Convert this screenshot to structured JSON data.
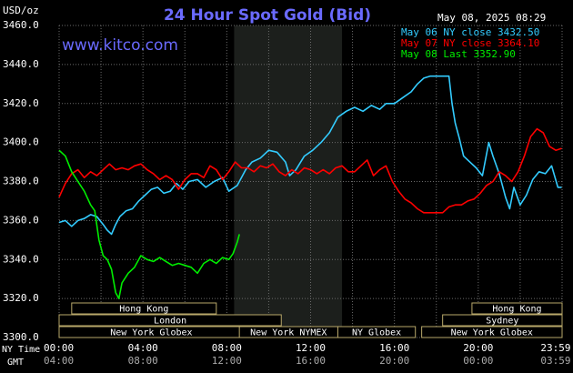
{
  "header": {
    "unit": "USD/oz",
    "title": "24 Hour Spot Gold (Bid)",
    "timestamp": "May 08, 2025 08:29",
    "site": "www.kitco.com"
  },
  "legend": [
    {
      "label": "May 06 NY close 3432.50",
      "color": "#33ccff"
    },
    {
      "label": "May 07 NY close 3364.10",
      "color": "#ff0000"
    },
    {
      "label": "May 08 Last 3352.90",
      "color": "#00ee00"
    }
  ],
  "sessions": [
    {
      "label": "Hong Kong",
      "row": 0,
      "start": 0.6,
      "end": 7.5
    },
    {
      "label": "Hong Kong",
      "row": 0,
      "start": 19.7,
      "end": 24.0
    },
    {
      "label": "London",
      "row": 1,
      "start": 0.0,
      "end": 10.6
    },
    {
      "label": "Sydney",
      "row": 1,
      "start": 18.3,
      "end": 24.0
    },
    {
      "label": "New York Globex",
      "row": 2,
      "start": 0.0,
      "end": 8.8
    },
    {
      "label": "New York NYMEX",
      "row": 2,
      "start": 8.6,
      "end": 13.3
    },
    {
      "label": "NY Globex",
      "row": 2,
      "start": 13.3,
      "end": 17.0
    },
    {
      "label": "New York Globex",
      "row": 2,
      "start": 17.3,
      "end": 24.0
    }
  ],
  "axis_labels": {
    "ny_time": "NY Time",
    "gmt": "GMT"
  },
  "colors": {
    "background": "#000000",
    "grid": "#6a6a6a",
    "title": "#6a6aff",
    "site": "#6a6aff",
    "nymex_shade": "#1c1f1c",
    "session_bar": "#000000",
    "session_border": "#b8a86a",
    "gmt_text": "#aaaaaa"
  },
  "chart_data": {
    "type": "line",
    "title": "24 Hour Spot Gold (Bid)",
    "ylabel": "USD/oz",
    "xlabel": "NY Time",
    "ylim": [
      3300,
      3460
    ],
    "yticks": [
      3300.0,
      3320.0,
      3340.0,
      3360.0,
      3380.0,
      3400.0,
      3420.0,
      3440.0,
      3460.0
    ],
    "xlim": [
      0,
      24
    ],
    "xticks": [
      {
        "hour": 0,
        "ny": "00:00",
        "gmt": "04:00"
      },
      {
        "hour": 4,
        "ny": "04:00",
        "gmt": "08:00"
      },
      {
        "hour": 8,
        "ny": "08:00",
        "gmt": "12:00"
      },
      {
        "hour": 12,
        "ny": "12:00",
        "gmt": "16:00"
      },
      {
        "hour": 16,
        "ny": "16:00",
        "gmt": "20:00"
      },
      {
        "hour": 20,
        "ny": "20:00",
        "gmt": "00:00"
      },
      {
        "hour": 23.98,
        "ny": "23:59",
        "gmt": "03:59"
      }
    ],
    "nymex_session": [
      8.35,
      13.5
    ],
    "grid": true,
    "legend_position": "top-right",
    "series": [
      {
        "name": "May 06 NY close 3432.50",
        "color": "#33ccff",
        "points": [
          [
            0.0,
            3359
          ],
          [
            0.3,
            3360
          ],
          [
            0.6,
            3357
          ],
          [
            0.9,
            3360
          ],
          [
            1.2,
            3361
          ],
          [
            1.5,
            3363
          ],
          [
            1.8,
            3362
          ],
          [
            2.1,
            3358
          ],
          [
            2.3,
            3355
          ],
          [
            2.5,
            3353
          ],
          [
            2.7,
            3358
          ],
          [
            2.9,
            3362
          ],
          [
            3.2,
            3365
          ],
          [
            3.5,
            3366
          ],
          [
            3.8,
            3370
          ],
          [
            4.1,
            3373
          ],
          [
            4.4,
            3376
          ],
          [
            4.7,
            3377
          ],
          [
            5.0,
            3374
          ],
          [
            5.3,
            3375
          ],
          [
            5.6,
            3379
          ],
          [
            5.9,
            3376
          ],
          [
            6.2,
            3380
          ],
          [
            6.6,
            3381
          ],
          [
            7.0,
            3377
          ],
          [
            7.4,
            3380
          ],
          [
            7.8,
            3382
          ],
          [
            8.1,
            3375
          ],
          [
            8.5,
            3378
          ],
          [
            8.9,
            3386
          ],
          [
            9.2,
            3390
          ],
          [
            9.6,
            3392
          ],
          [
            10.0,
            3396
          ],
          [
            10.4,
            3395
          ],
          [
            10.8,
            3390
          ],
          [
            11.0,
            3383
          ],
          [
            11.3,
            3386
          ],
          [
            11.7,
            3393
          ],
          [
            12.1,
            3396
          ],
          [
            12.5,
            3400
          ],
          [
            12.9,
            3405
          ],
          [
            13.3,
            3413
          ],
          [
            13.7,
            3416
          ],
          [
            14.1,
            3418
          ],
          [
            14.5,
            3416
          ],
          [
            14.9,
            3419
          ],
          [
            15.3,
            3417
          ],
          [
            15.6,
            3420
          ],
          [
            16.0,
            3420
          ],
          [
            16.4,
            3423
          ],
          [
            16.8,
            3426
          ],
          [
            17.1,
            3430
          ],
          [
            17.4,
            3433
          ],
          [
            17.7,
            3434
          ],
          [
            18.0,
            3434
          ],
          [
            18.3,
            3434
          ],
          [
            18.6,
            3434
          ],
          [
            18.75,
            3420
          ],
          [
            18.9,
            3410
          ],
          [
            19.1,
            3402
          ],
          [
            19.3,
            3393
          ],
          [
            19.6,
            3390
          ],
          [
            19.9,
            3387
          ],
          [
            20.2,
            3383
          ],
          [
            20.5,
            3400
          ],
          [
            20.7,
            3393
          ],
          [
            21.0,
            3384
          ],
          [
            21.3,
            3372
          ],
          [
            21.5,
            3366
          ],
          [
            21.7,
            3377
          ],
          [
            22.0,
            3368
          ],
          [
            22.3,
            3373
          ],
          [
            22.6,
            3381
          ],
          [
            22.9,
            3385
          ],
          [
            23.2,
            3384
          ],
          [
            23.5,
            3388
          ],
          [
            23.8,
            3377
          ],
          [
            23.98,
            3377
          ]
        ]
      },
      {
        "name": "May 07 NY close 3364.10",
        "color": "#ff0000",
        "points": [
          [
            0.0,
            3372
          ],
          [
            0.3,
            3379
          ],
          [
            0.6,
            3384
          ],
          [
            0.9,
            3386
          ],
          [
            1.2,
            3382
          ],
          [
            1.5,
            3385
          ],
          [
            1.8,
            3383
          ],
          [
            2.1,
            3386
          ],
          [
            2.4,
            3389
          ],
          [
            2.7,
            3386
          ],
          [
            3.0,
            3387
          ],
          [
            3.3,
            3386
          ],
          [
            3.6,
            3388
          ],
          [
            3.9,
            3389
          ],
          [
            4.2,
            3386
          ],
          [
            4.5,
            3384
          ],
          [
            4.8,
            3381
          ],
          [
            5.1,
            3383
          ],
          [
            5.4,
            3381
          ],
          [
            5.7,
            3376
          ],
          [
            6.0,
            3381
          ],
          [
            6.3,
            3384
          ],
          [
            6.6,
            3384
          ],
          [
            6.9,
            3382
          ],
          [
            7.2,
            3388
          ],
          [
            7.5,
            3386
          ],
          [
            7.8,
            3381
          ],
          [
            8.1,
            3385
          ],
          [
            8.4,
            3390
          ],
          [
            8.7,
            3387
          ],
          [
            9.0,
            3387
          ],
          [
            9.3,
            3385
          ],
          [
            9.6,
            3388
          ],
          [
            9.9,
            3387
          ],
          [
            10.2,
            3389
          ],
          [
            10.5,
            3385
          ],
          [
            10.8,
            3383
          ],
          [
            11.1,
            3386
          ],
          [
            11.4,
            3384
          ],
          [
            11.7,
            3387
          ],
          [
            12.0,
            3386
          ],
          [
            12.3,
            3384
          ],
          [
            12.6,
            3386
          ],
          [
            12.9,
            3384
          ],
          [
            13.2,
            3387
          ],
          [
            13.5,
            3388
          ],
          [
            13.8,
            3385
          ],
          [
            14.1,
            3385
          ],
          [
            14.4,
            3388
          ],
          [
            14.7,
            3391
          ],
          [
            15.0,
            3383
          ],
          [
            15.3,
            3386
          ],
          [
            15.6,
            3388
          ],
          [
            15.9,
            3380
          ],
          [
            16.2,
            3375
          ],
          [
            16.5,
            3371
          ],
          [
            16.8,
            3369
          ],
          [
            17.1,
            3366
          ],
          [
            17.4,
            3364
          ],
          [
            17.7,
            3364
          ],
          [
            18.0,
            3364
          ],
          [
            18.3,
            3364
          ],
          [
            18.6,
            3367
          ],
          [
            18.9,
            3368
          ],
          [
            19.2,
            3368
          ],
          [
            19.5,
            3370
          ],
          [
            19.8,
            3371
          ],
          [
            20.1,
            3374
          ],
          [
            20.4,
            3378
          ],
          [
            20.7,
            3380
          ],
          [
            21.0,
            3385
          ],
          [
            21.3,
            3383
          ],
          [
            21.6,
            3380
          ],
          [
            21.9,
            3385
          ],
          [
            22.2,
            3393
          ],
          [
            22.5,
            3403
          ],
          [
            22.8,
            3407
          ],
          [
            23.1,
            3405
          ],
          [
            23.4,
            3398
          ],
          [
            23.7,
            3396
          ],
          [
            23.98,
            3397
          ]
        ]
      },
      {
        "name": "May 08 Last 3352.90",
        "color": "#00ee00",
        "points": [
          [
            0.0,
            3396
          ],
          [
            0.3,
            3393
          ],
          [
            0.6,
            3385
          ],
          [
            0.9,
            3380
          ],
          [
            1.2,
            3375
          ],
          [
            1.5,
            3368
          ],
          [
            1.7,
            3365
          ],
          [
            1.9,
            3350
          ],
          [
            2.1,
            3342
          ],
          [
            2.3,
            3340
          ],
          [
            2.5,
            3335
          ],
          [
            2.7,
            3323
          ],
          [
            2.85,
            3320
          ],
          [
            3.0,
            3328
          ],
          [
            3.3,
            3333
          ],
          [
            3.6,
            3336
          ],
          [
            3.9,
            3342
          ],
          [
            4.2,
            3340
          ],
          [
            4.5,
            3339
          ],
          [
            4.8,
            3341
          ],
          [
            5.1,
            3339
          ],
          [
            5.4,
            3337
          ],
          [
            5.7,
            3338
          ],
          [
            6.0,
            3337
          ],
          [
            6.3,
            3336
          ],
          [
            6.6,
            3333
          ],
          [
            6.9,
            3338
          ],
          [
            7.2,
            3340
          ],
          [
            7.5,
            3338
          ],
          [
            7.8,
            3341
          ],
          [
            8.1,
            3340
          ],
          [
            8.3,
            3343
          ],
          [
            8.5,
            3349
          ],
          [
            8.6,
            3353
          ]
        ]
      }
    ]
  }
}
